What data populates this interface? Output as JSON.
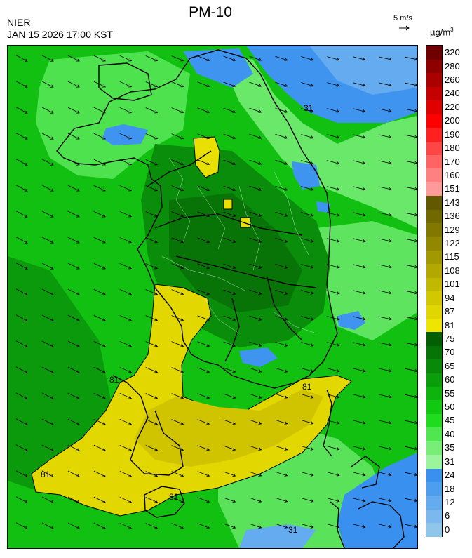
{
  "header": {
    "title": "PM-10",
    "agency": "NIER",
    "datetime": "JAN 15 2026 17:00 KST",
    "wind_reference": "5 m/s",
    "unit_base": "µg/m",
    "unit_exp": "3"
  },
  "map": {
    "contour_labels": [
      "31",
      "81",
      "81",
      "81",
      "81",
      "31"
    ],
    "wind_direction": "northwest to southeast"
  },
  "legend": {
    "bins": [
      {
        "from": "0",
        "color": "#8fc6ea"
      },
      {
        "from": "6",
        "color": "#7ab8ee"
      },
      {
        "from": "12",
        "color": "#64abef"
      },
      {
        "from": "18",
        "color": "#4e9ef0"
      },
      {
        "from": "24",
        "color": "#3a90ee"
      },
      {
        "from": "31",
        "color": "#9cf59c"
      },
      {
        "from": "35",
        "color": "#78ee78"
      },
      {
        "from": "40",
        "color": "#4fe64f"
      },
      {
        "from": "45",
        "color": "#1fdc1f"
      },
      {
        "from": "50",
        "color": "#10c910"
      },
      {
        "from": "55",
        "color": "#0db40d"
      },
      {
        "from": "60",
        "color": "#0a9f0a"
      },
      {
        "from": "65",
        "color": "#088a08"
      },
      {
        "from": "70",
        "color": "#067406"
      },
      {
        "from": "75",
        "color": "#045e04"
      },
      {
        "from": "81",
        "color": "#eee600"
      },
      {
        "from": "87",
        "color": "#e0d600"
      },
      {
        "from": "94",
        "color": "#d2c800"
      },
      {
        "from": "101",
        "color": "#c2b800"
      },
      {
        "from": "108",
        "color": "#b2a800"
      },
      {
        "from": "115",
        "color": "#a29800"
      },
      {
        "from": "122",
        "color": "#928800"
      },
      {
        "from": "129",
        "color": "#827800"
      },
      {
        "from": "136",
        "color": "#726800"
      },
      {
        "from": "143",
        "color": "#625800"
      },
      {
        "from": "151",
        "color": "#ff9a9a"
      },
      {
        "from": "160",
        "color": "#ff8080"
      },
      {
        "from": "170",
        "color": "#ff6464"
      },
      {
        "from": "180",
        "color": "#ff4646"
      },
      {
        "from": "190",
        "color": "#ff2020"
      },
      {
        "from": "200",
        "color": "#ff0000"
      },
      {
        "from": "220",
        "color": "#e00000"
      },
      {
        "from": "240",
        "color": "#c40000"
      },
      {
        "from": "260",
        "color": "#aa0000"
      },
      {
        "from": "280",
        "color": "#8e0000"
      },
      {
        "from": "320",
        "color": "#700000"
      }
    ]
  }
}
